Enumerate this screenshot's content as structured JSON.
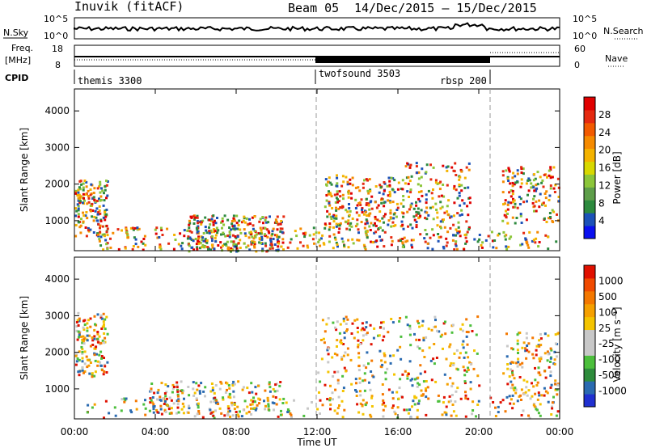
{
  "header": {
    "station": "Inuvik (fitACF)",
    "beam": "Beam 05",
    "date_range": "14/Dec/2015 – 15/Dec/2015"
  },
  "top_panels": {
    "nsky_label": "N.Sky",
    "nsearch_label": "N.Search",
    "nsky_ticks": [
      "10^5",
      "10^0"
    ],
    "nsearch_ticks": [
      "10^5",
      "10^0"
    ],
    "freq_label": "Freq.",
    "freq_unit": "[MHz]",
    "freq_ticks": [
      "18",
      "8"
    ],
    "nave_label": "Nave",
    "nave_ticks": [
      "60",
      "0"
    ],
    "cpid_label": "CPID",
    "cpid_programs": [
      {
        "name": "themis 3300"
      },
      {
        "name": "twofsound 3503"
      },
      {
        "name": "rbsp 200"
      }
    ]
  },
  "chart_data": [
    {
      "type": "heatmap",
      "ylabel": "Slant Range [km]",
      "xlabel": "Time UT",
      "x_ticks": [
        "00:00",
        "04:00",
        "08:00",
        "12:00",
        "16:00",
        "20:00",
        "00:00"
      ],
      "y_ticks": [
        "1000",
        "2000",
        "3000",
        "4000"
      ],
      "ylim": [
        180,
        4600
      ],
      "colorbar_label": "Power [dB]",
      "colorbar_ticks": [
        "4",
        "8",
        "12",
        "16",
        "20",
        "24",
        "28"
      ],
      "colorbar_colors": [
        "#0a10f0",
        "#1c52b8",
        "#2d8a3e",
        "#5e9e4a",
        "#8cc63a",
        "#d8d800",
        "#f4b300",
        "#f58a00",
        "#f25a00",
        "#e52a10",
        "#e00000"
      ]
    },
    {
      "type": "heatmap",
      "ylabel": "Slant Range [km]",
      "xlabel": "Time UT",
      "x_ticks": [
        "00:00",
        "04:00",
        "08:00",
        "12:00",
        "16:00",
        "20:00",
        "00:00"
      ],
      "y_ticks": [
        "1000",
        "2000",
        "3000",
        "4000"
      ],
      "ylim": [
        180,
        4600
      ],
      "colorbar_label": "Velocity [m s⁻¹]",
      "colorbar_ticks": [
        "1000",
        "500",
        "100",
        "25",
        "-25",
        "-100",
        "-500",
        "-1000"
      ],
      "colorbar_colors": [
        "#2030d0",
        "#2a6ab0",
        "#2e8c3c",
        "#4cbf3c",
        "#c8c8c8",
        "#c8c8c8",
        "#f4c400",
        "#f5a000",
        "#f47800",
        "#f04a00",
        "#e01000"
      ]
    }
  ],
  "x_axis_title": "Time UT"
}
